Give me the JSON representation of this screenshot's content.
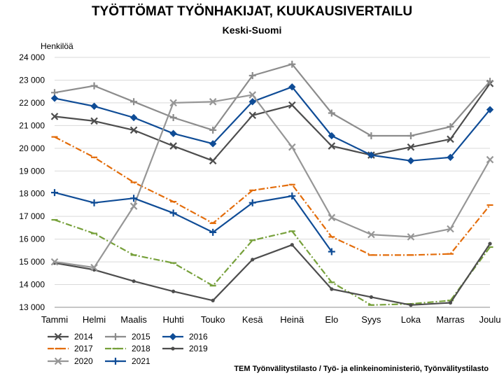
{
  "title": "TYÖTTÖMAT TYÖNHAKIJAT, KUUKAUSIVERTAILU",
  "subtitle": "Keski-Suomi",
  "source": "TEM Työnvälitystilasto / Työ- ja elinkeinoministeriö, Työnvälitystilasto",
  "chart_data": {
    "type": "line",
    "ylabel": "Henkilöä",
    "categories": [
      "Tammi",
      "Helmi",
      "Maalis",
      "Huhti",
      "Touko",
      "Kesä",
      "Heinä",
      "Elo",
      "Syys",
      "Loka",
      "Marras",
      "Joulu"
    ],
    "ylim": [
      13000,
      24000
    ],
    "yticks": [
      13000,
      14000,
      15000,
      16000,
      17000,
      18000,
      19000,
      20000,
      21000,
      22000,
      23000,
      24000
    ],
    "ytick_labels": [
      "13 000",
      "14 000",
      "15 000",
      "16 000",
      "17 000",
      "18 000",
      "19 000",
      "20 000",
      "21 000",
      "22 000",
      "23 000",
      "24 000"
    ],
    "grid": true,
    "legend_position": "bottom-left",
    "series": [
      {
        "name": "2014",
        "color": "#4d4d4d",
        "marker": "x",
        "dash": "solid",
        "values": [
          21400,
          21200,
          20800,
          20100,
          19450,
          21450,
          21900,
          20100,
          19700,
          20050,
          20400,
          22850
        ]
      },
      {
        "name": "2015",
        "color": "#8c8c8c",
        "marker": "plus",
        "dash": "solid",
        "values": [
          22450,
          22750,
          22050,
          21350,
          20800,
          23200,
          23700,
          21550,
          20550,
          20550,
          20950,
          22950
        ]
      },
      {
        "name": "2016",
        "color": "#0f4c96",
        "marker": "diamond",
        "dash": "solid",
        "values": [
          22200,
          21850,
          21350,
          20650,
          20200,
          22050,
          22700,
          20550,
          19700,
          19450,
          19600,
          21700
        ]
      },
      {
        "name": "2017",
        "color": "#e36c0a",
        "marker": "dash",
        "dash": "dashdot",
        "values": [
          20500,
          19600,
          18500,
          17650,
          16700,
          18150,
          18400,
          16100,
          15300,
          15300,
          15350,
          17500
        ]
      },
      {
        "name": "2018",
        "color": "#76a03a",
        "marker": "dash",
        "dash": "dashdot",
        "values": [
          16850,
          16250,
          15300,
          14950,
          13950,
          15950,
          16350,
          14100,
          13100,
          13150,
          13300,
          15650
        ]
      },
      {
        "name": "2019",
        "color": "#4d4d4d",
        "marker": "dot",
        "dash": "solid",
        "values": [
          14950,
          14650,
          14150,
          13700,
          13300,
          15100,
          15750,
          13800,
          13450,
          13100,
          13200,
          15800
        ]
      },
      {
        "name": "2020",
        "color": "#969696",
        "marker": "x",
        "dash": "solid",
        "values": [
          15000,
          14750,
          17450,
          22000,
          22050,
          22350,
          20050,
          16950,
          16200,
          16100,
          16450,
          19500
        ]
      },
      {
        "name": "2021",
        "color": "#0f4c96",
        "marker": "plus",
        "dash": "solid",
        "values": [
          18050,
          17600,
          17800,
          17150,
          16300,
          17600,
          17900,
          15450,
          null,
          null,
          null,
          null
        ]
      }
    ]
  }
}
